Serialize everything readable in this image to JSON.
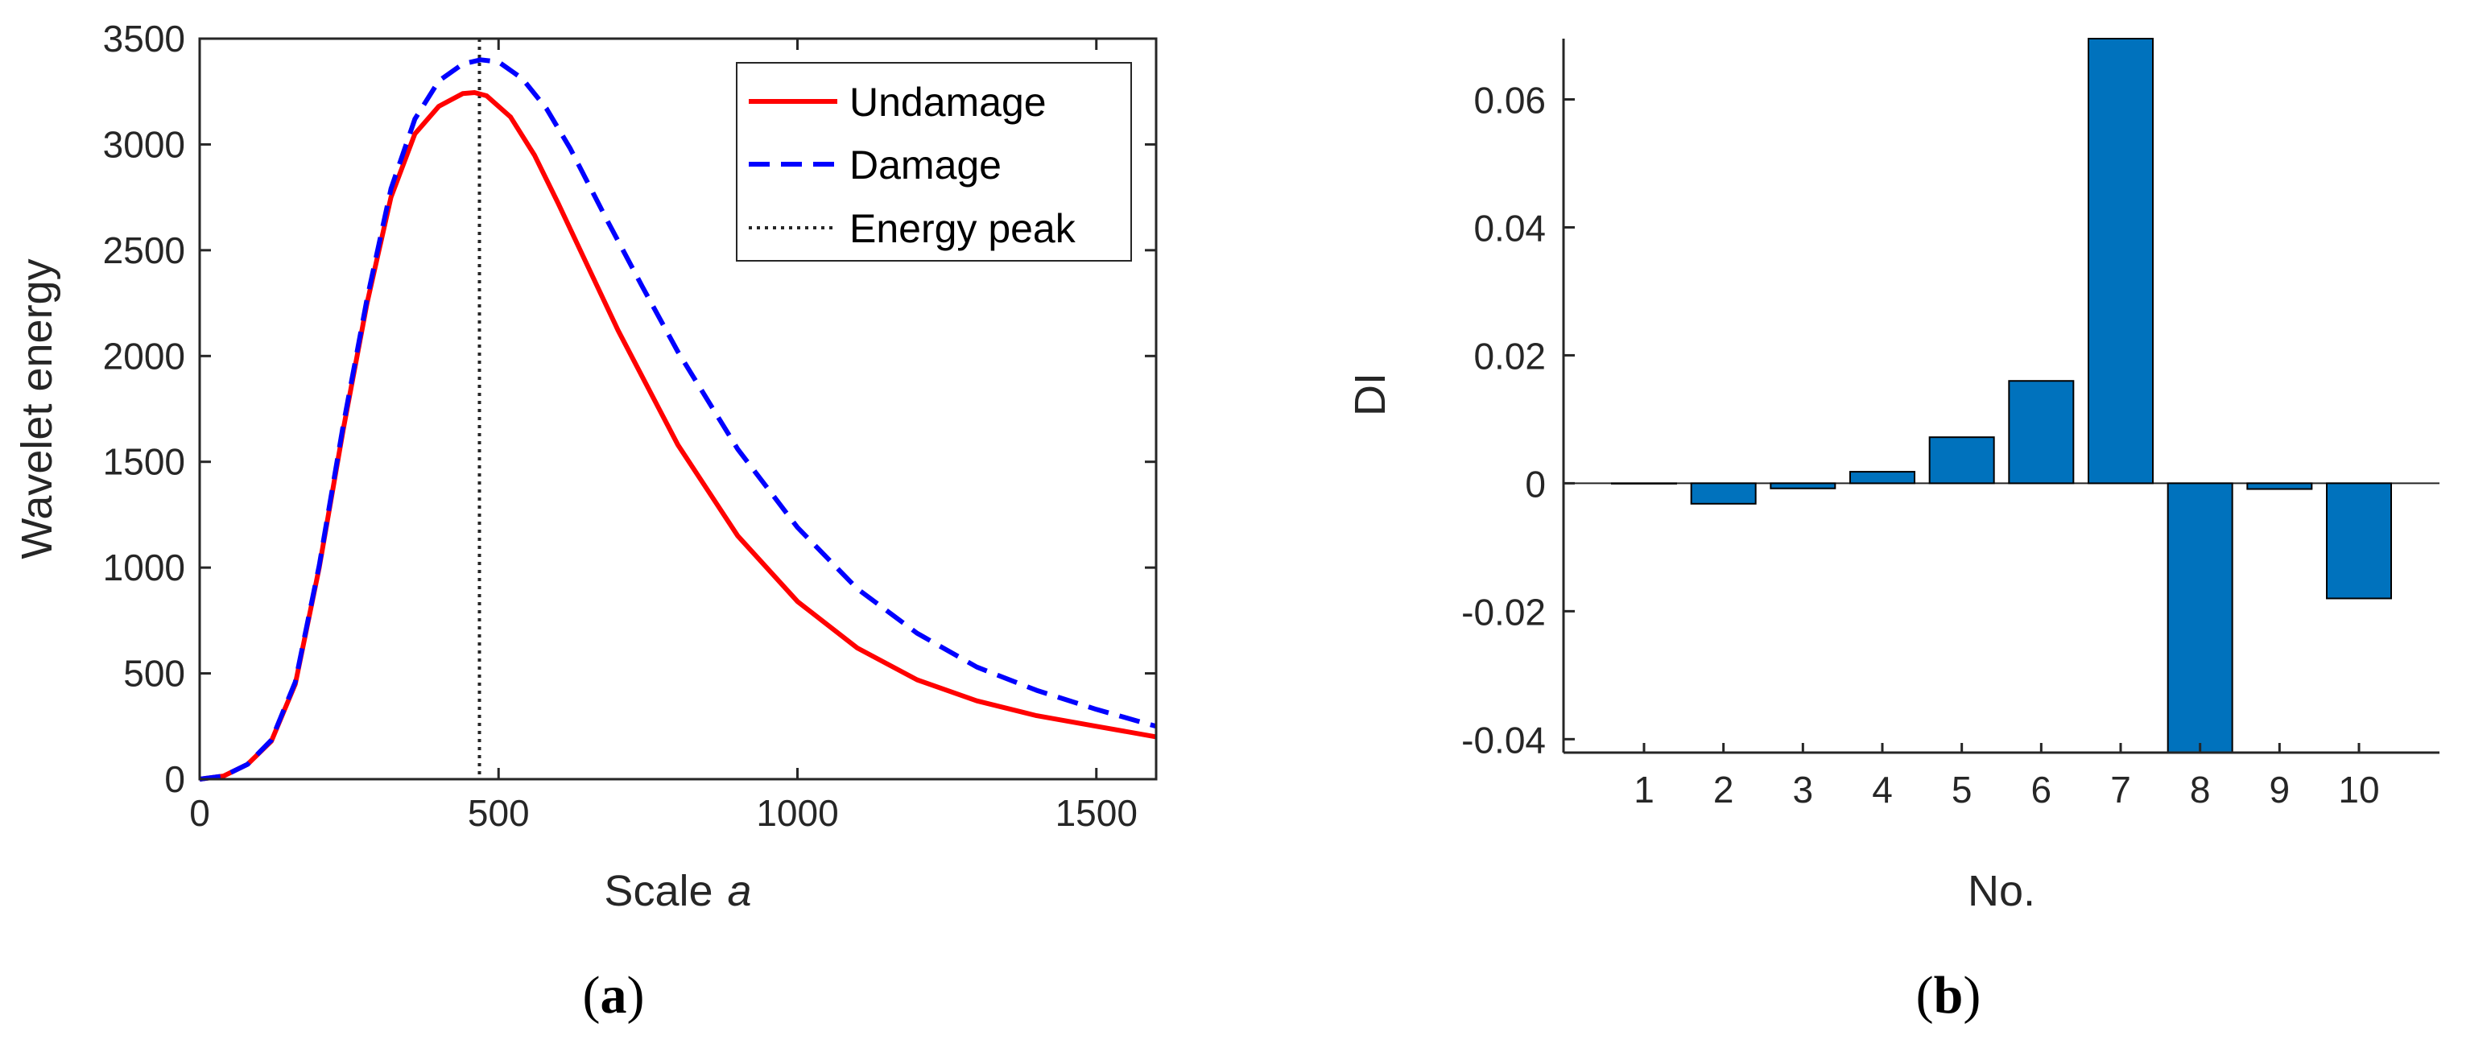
{
  "chart_data": [
    {
      "type": "line",
      "panel_label": "a",
      "xlabel": "Scale",
      "xlabel_var": "a",
      "ylabel": "Wavelet energy",
      "xlim": [
        0,
        1600
      ],
      "ylim": [
        0,
        3500
      ],
      "xticks": [
        0,
        500,
        1000,
        1500
      ],
      "yticks": [
        0,
        500,
        1000,
        1500,
        2000,
        2500,
        3000,
        3500
      ],
      "legend_position": "top-right",
      "series": [
        {
          "name": "Undamage",
          "color": "#ff0000",
          "style": "solid",
          "x": [
            0,
            40,
            80,
            120,
            160,
            200,
            240,
            280,
            320,
            360,
            400,
            440,
            460,
            480,
            520,
            560,
            600,
            650,
            700,
            800,
            900,
            1000,
            1100,
            1200,
            1300,
            1400,
            1500,
            1600
          ],
          "y": [
            0,
            15,
            70,
            180,
            450,
            1000,
            1650,
            2250,
            2750,
            3050,
            3180,
            3240,
            3245,
            3230,
            3130,
            2950,
            2720,
            2420,
            2120,
            1580,
            1150,
            840,
            620,
            470,
            370,
            300,
            250,
            200
          ]
        },
        {
          "name": "Damage",
          "color": "#0000ff",
          "style": "dashed",
          "x": [
            0,
            40,
            80,
            120,
            160,
            200,
            240,
            280,
            320,
            360,
            400,
            440,
            470,
            500,
            540,
            580,
            620,
            680,
            740,
            800,
            900,
            1000,
            1100,
            1200,
            1300,
            1400,
            1500,
            1600
          ],
          "y": [
            0,
            15,
            70,
            185,
            460,
            1010,
            1670,
            2270,
            2790,
            3120,
            3300,
            3380,
            3400,
            3390,
            3310,
            3170,
            2980,
            2650,
            2330,
            2020,
            1560,
            1190,
            900,
            690,
            530,
            420,
            330,
            250
          ]
        }
      ],
      "vline": {
        "name": "Energy peak",
        "x": 468,
        "color": "#262626",
        "style": "dotted"
      }
    },
    {
      "type": "bar",
      "panel_label": "b",
      "xlabel": "No.",
      "ylabel": "DI",
      "categories": [
        "1",
        "2",
        "3",
        "4",
        "5",
        "6",
        "7",
        "8",
        "9",
        "10"
      ],
      "values": [
        0.0,
        -0.0032,
        -0.0008,
        0.0018,
        0.0072,
        0.016,
        0.0695,
        -0.0421,
        -0.0009,
        -0.018
      ],
      "ylim": [
        -0.0421,
        0.0695
      ],
      "yticks": [
        -0.04,
        -0.02,
        0,
        0.02,
        0.04,
        0.06
      ],
      "ytick_labels": [
        "-0.04",
        "-0.02",
        "0",
        "0.02",
        "0.04",
        "0.06"
      ],
      "bar_color": "#0072bd"
    }
  ],
  "captions": {
    "a": "a",
    "b": "b"
  }
}
